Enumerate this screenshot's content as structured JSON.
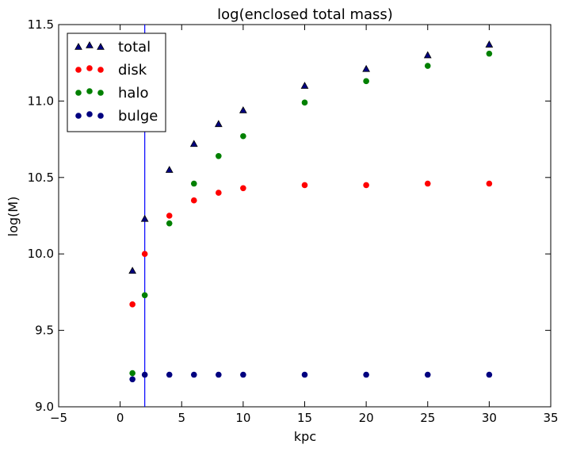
{
  "chart_data": {
    "type": "scatter",
    "title": "log(enclosed total mass)",
    "xlabel": "kpc",
    "ylabel": "log(M)",
    "xlim": [
      -5,
      35
    ],
    "ylim": [
      9.0,
      11.5
    ],
    "x_ticks": [
      -5,
      0,
      5,
      10,
      15,
      20,
      25,
      30,
      35
    ],
    "y_ticks": [
      9.0,
      9.5,
      10.0,
      10.5,
      11.0,
      11.5
    ],
    "x_tick_labels": [
      "−5",
      "0",
      "5",
      "10",
      "15",
      "20",
      "25",
      "30",
      "35"
    ],
    "y_tick_labels": [
      "9.0",
      "9.5",
      "10.0",
      "10.5",
      "11.0",
      "11.5"
    ],
    "grid": false,
    "legend_position": "top-left",
    "vertical_line": {
      "x": 2,
      "color": "#0000ff"
    },
    "series": [
      {
        "name": "total",
        "marker": "triangle",
        "color": "#000080",
        "x": [
          1,
          2,
          4,
          6,
          8,
          10,
          15,
          20,
          25,
          30
        ],
        "y": [
          9.89,
          10.23,
          10.55,
          10.72,
          10.85,
          10.94,
          11.1,
          11.21,
          11.3,
          11.37
        ]
      },
      {
        "name": "disk",
        "marker": "circle",
        "color": "#ff0000",
        "x": [
          1,
          2,
          4,
          6,
          8,
          10,
          15,
          20,
          25,
          30
        ],
        "y": [
          9.67,
          10.0,
          10.25,
          10.35,
          10.4,
          10.43,
          10.45,
          10.45,
          10.46,
          10.46
        ]
      },
      {
        "name": "halo",
        "marker": "circle",
        "color": "#008000",
        "x": [
          1,
          2,
          4,
          6,
          8,
          10,
          15,
          20,
          25,
          30
        ],
        "y": [
          9.22,
          9.73,
          10.2,
          10.46,
          10.64,
          10.77,
          10.99,
          11.13,
          11.23,
          11.31
        ]
      },
      {
        "name": "bulge",
        "marker": "circle",
        "color": "#000080",
        "x": [
          1,
          2,
          4,
          6,
          8,
          10,
          15,
          20,
          25,
          30
        ],
        "y": [
          9.18,
          9.21,
          9.21,
          9.21,
          9.21,
          9.21,
          9.21,
          9.21,
          9.21,
          9.21
        ]
      }
    ]
  }
}
